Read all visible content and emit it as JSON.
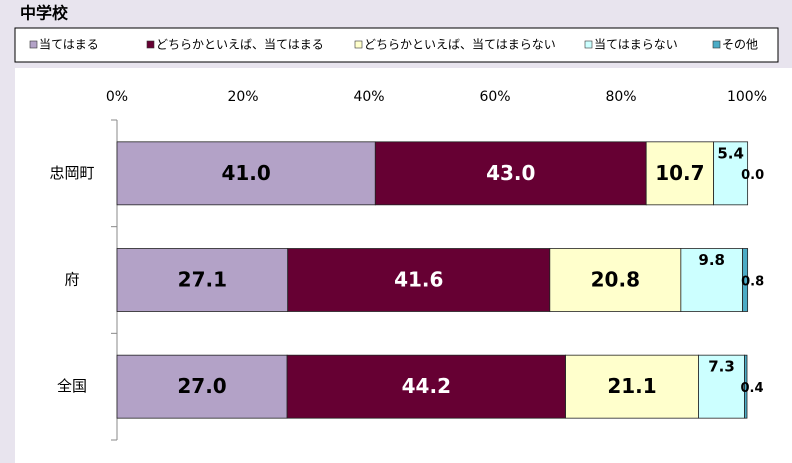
{
  "chart_data": {
    "type": "stacked_barh",
    "title": "中学校",
    "categories": [
      "忠岡町",
      "府",
      "全国"
    ],
    "series": [
      {
        "name": "当てはまる",
        "color": "#b3a2c7",
        "values": [
          41.0,
          27.1,
          27.0
        ],
        "value_labels": [
          "41.0",
          "27.1",
          "27.0"
        ]
      },
      {
        "name": "どちらかといえば、当てはまる",
        "color": "#660033",
        "values": [
          43.0,
          41.6,
          44.2
        ],
        "value_labels": [
          "43.0",
          "41.6",
          "44.2"
        ]
      },
      {
        "name": "どちらかといえば、当てはまらない",
        "color": "#ffffcc",
        "values": [
          10.7,
          20.8,
          21.1
        ],
        "value_labels": [
          "10.7",
          "20.8",
          "21.1"
        ]
      },
      {
        "name": "当てはまらない",
        "color": "#ccffff",
        "values": [
          5.4,
          9.8,
          7.3
        ],
        "value_labels": [
          "5.4",
          "9.8",
          "7.3"
        ]
      },
      {
        "name": "その他",
        "color": "#4bacc6",
        "values": [
          0.0,
          0.8,
          0.4
        ],
        "value_labels": [
          "0.0",
          "0.8",
          "0.4"
        ]
      }
    ],
    "xlim": [
      0,
      100
    ],
    "xticks": [
      {
        "value": 0,
        "label": "0%"
      },
      {
        "value": 20,
        "label": "20%"
      },
      {
        "value": 40,
        "label": "40%"
      },
      {
        "value": 60,
        "label": "60%"
      },
      {
        "value": 80,
        "label": "80%"
      },
      {
        "value": 100,
        "label": "100%"
      }
    ]
  }
}
